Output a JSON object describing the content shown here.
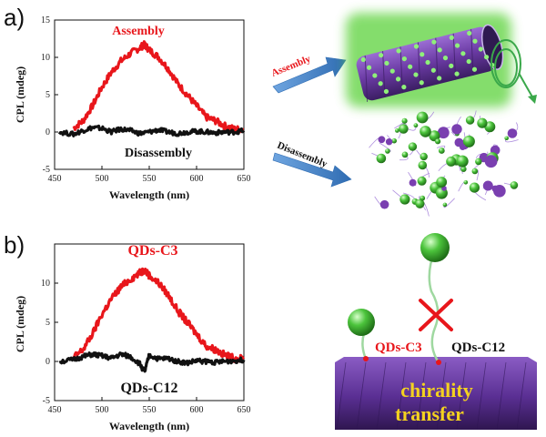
{
  "panels": [
    {
      "letter": "a)"
    },
    {
      "letter": "b)"
    }
  ],
  "chart_data": [
    {
      "type": "line",
      "xlabel": "Wavelength (nm)",
      "ylabel": "CPL (mdeg)",
      "xlim": [
        450,
        650
      ],
      "ylim": [
        -5,
        15
      ],
      "xticks": [
        450,
        500,
        550,
        600,
        650
      ],
      "yticks": [
        -5,
        0,
        5,
        10,
        15
      ],
      "series": [
        {
          "name": "Assembly",
          "color": "#e8161b",
          "x": [
            470,
            480,
            490,
            500,
            510,
            520,
            530,
            540,
            545,
            550,
            560,
            570,
            580,
            590,
            600,
            610,
            620,
            630,
            640,
            650
          ],
          "y": [
            0.5,
            1.5,
            3.5,
            6.0,
            8.0,
            9.5,
            10.5,
            11.3,
            11.7,
            11.0,
            10.0,
            8.5,
            6.5,
            5.0,
            3.5,
            2.0,
            1.5,
            0.8,
            0.4,
            0.3
          ]
        },
        {
          "name": "Disassembly",
          "color": "#111111",
          "x": [
            455,
            470,
            480,
            490,
            500,
            510,
            520,
            530,
            540,
            550,
            560,
            570,
            580,
            590,
            600,
            610,
            620,
            630,
            640,
            650
          ],
          "y": [
            0.0,
            -0.3,
            0.2,
            0.6,
            0.5,
            0.0,
            0.4,
            0.2,
            -0.2,
            0.0,
            0.3,
            0.0,
            -0.2,
            0.0,
            0.1,
            0.0,
            -0.1,
            0.0,
            0.0,
            0.2
          ]
        }
      ]
    },
    {
      "type": "line",
      "xlabel": "Wavelength (nm)",
      "ylabel": "CPL (mdeg)",
      "xlim": [
        450,
        650
      ],
      "ylim": [
        -5,
        15
      ],
      "xticks": [
        450,
        500,
        550,
        600,
        650
      ],
      "yticks": [
        -5,
        0,
        5,
        10
      ],
      "series": [
        {
          "name": "QDs-C3",
          "color": "#e8161b",
          "x": [
            470,
            480,
            490,
            500,
            510,
            520,
            530,
            540,
            545,
            550,
            560,
            570,
            580,
            590,
            600,
            610,
            620,
            630,
            640,
            650
          ],
          "y": [
            0.5,
            1.5,
            3.5,
            6.0,
            8.0,
            9.5,
            10.5,
            11.3,
            11.7,
            11.0,
            10.0,
            8.5,
            6.5,
            5.0,
            3.5,
            2.0,
            1.5,
            0.8,
            0.4,
            0.3
          ]
        },
        {
          "name": "QDs-C12",
          "color": "#111111",
          "x": [
            455,
            470,
            480,
            490,
            500,
            510,
            520,
            530,
            540,
            545,
            550,
            560,
            570,
            580,
            590,
            600,
            610,
            620,
            630,
            640,
            650
          ],
          "y": [
            0.0,
            0.2,
            0.6,
            0.9,
            0.7,
            0.4,
            0.9,
            0.6,
            -0.3,
            -1.4,
            0.8,
            0.3,
            0.4,
            0.0,
            -0.2,
            0.1,
            0.0,
            -0.1,
            0.0,
            0.1,
            0.2
          ]
        }
      ]
    }
  ],
  "schematic": {
    "arrows": [
      "Assembly",
      "Disassembly"
    ],
    "labels": {
      "short_ligand": "QDs-C3",
      "long_ligand": "QDs-C12",
      "substrate_line1": "chirality",
      "substrate_line2": "transfer"
    },
    "colors": {
      "qd_sphere": "#4cc43c",
      "helix": "#7a3fb0",
      "arrow": "#4a86c8",
      "cross": "#e8161b",
      "substrate_text": "#f4d21f"
    }
  }
}
